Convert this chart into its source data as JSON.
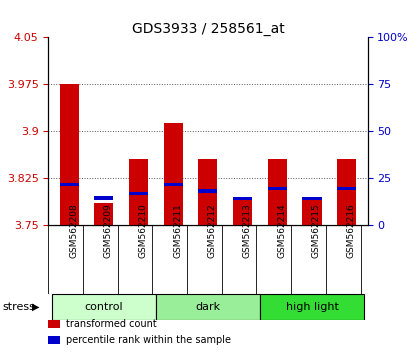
{
  "title": "GDS3933 / 258561_at",
  "samples": [
    "GSM562208",
    "GSM562209",
    "GSM562210",
    "GSM562211",
    "GSM562212",
    "GSM562213",
    "GSM562214",
    "GSM562215",
    "GSM562216"
  ],
  "red_values": [
    3.975,
    3.785,
    3.855,
    3.912,
    3.855,
    3.79,
    3.855,
    3.793,
    3.855
  ],
  "blue_values": [
    3.814,
    3.793,
    3.8,
    3.814,
    3.804,
    3.792,
    3.808,
    3.792,
    3.808
  ],
  "ylim_left": [
    3.75,
    4.05
  ],
  "ylim_right": [
    0,
    100
  ],
  "yticks_left": [
    3.75,
    3.825,
    3.9,
    3.975,
    4.05
  ],
  "yticks_right": [
    0,
    25,
    50,
    75,
    100
  ],
  "groups": [
    {
      "label": "control",
      "indices": [
        0,
        1,
        2
      ],
      "color": "#ccffcc"
    },
    {
      "label": "dark",
      "indices": [
        3,
        4,
        5
      ],
      "color": "#99ee99"
    },
    {
      "label": "high light",
      "indices": [
        6,
        7,
        8
      ],
      "color": "#33dd33"
    }
  ],
  "red_color": "#cc0000",
  "blue_color": "#0000cc",
  "bar_width": 0.55,
  "base": 3.75,
  "grid_color": "#555555",
  "tick_color_left": "#cc0000",
  "tick_color_right": "#0000cc",
  "stress_label": "stress",
  "legend_items": [
    {
      "color": "#cc0000",
      "label": "transformed count"
    },
    {
      "color": "#0000cc",
      "label": "percentile rank within the sample"
    }
  ],
  "bg_color": "#ffffff",
  "sample_bg_color": "#cccccc",
  "title_fontsize": 10,
  "axis_fontsize": 8,
  "label_fontsize": 6.5,
  "legend_fontsize": 7
}
